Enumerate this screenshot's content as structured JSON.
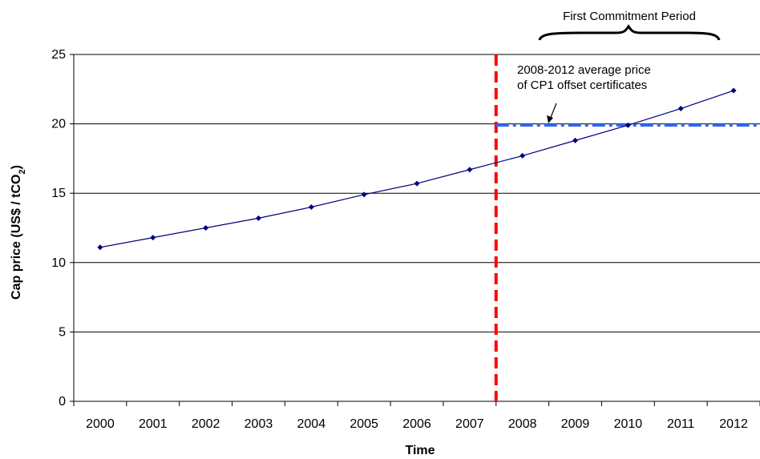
{
  "chart_data": {
    "type": "line",
    "title": "",
    "xlabel": "Time",
    "ylabel_main": "Cap price (US$ / tCO",
    "ylabel_sub": "2",
    "ylabel_tail": ")",
    "categories": [
      "2000",
      "2001",
      "2002",
      "2003",
      "2004",
      "2005",
      "2006",
      "2007",
      "2008",
      "2009",
      "2010",
      "2011",
      "2012"
    ],
    "ylim": [
      0,
      25
    ],
    "yticks": [
      "0",
      "5",
      "10",
      "15",
      "20",
      "25"
    ],
    "grid": true,
    "legend": "none",
    "series": [
      {
        "x": [
          0,
          1,
          2,
          3,
          4,
          5,
          6,
          7,
          8,
          9,
          10,
          11,
          12
        ],
        "values": [
          11.1,
          11.8,
          12.5,
          13.2,
          14.0,
          14.9,
          15.7,
          16.7,
          17.7,
          18.8,
          19.9,
          21.1,
          22.4
        ],
        "color": "#000080"
      }
    ],
    "reference_lines": {
      "vertical_dashed_color": "#ff0000",
      "average_price_value": 19.9,
      "average_price_color": "#3366ff"
    },
    "annotations": {
      "period_label": "First Commitment Period",
      "avg_label_line1": "2008-2012 average price",
      "avg_label_line2": "of CP1 offset certificates"
    }
  }
}
